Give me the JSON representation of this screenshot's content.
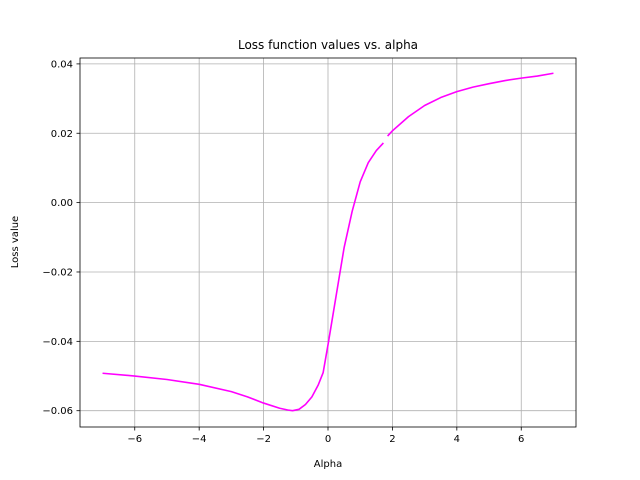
{
  "chart_data": {
    "type": "line",
    "title": "Loss function values vs. alpha",
    "xlabel": "Alpha",
    "ylabel": "Loss value",
    "xlim": [
      -7.7,
      7.7
    ],
    "ylim": [
      -0.0647,
      0.0417
    ],
    "grid": true,
    "x_ticks": [
      -6,
      -4,
      -2,
      0,
      2,
      4,
      6
    ],
    "x_tick_labels": [
      "−6",
      "−4",
      "−2",
      "0",
      "2",
      "4",
      "6"
    ],
    "y_ticks": [
      -0.06,
      -0.04,
      -0.02,
      0.0,
      0.02,
      0.04
    ],
    "y_tick_labels": [
      "−0.06",
      "−0.04",
      "−0.02",
      "0.00",
      "0.02",
      "0.04"
    ],
    "series": [
      {
        "color": "#ff00ff",
        "segments": [
          {
            "x": [
              -7.0,
              -6.0,
              -5.0,
              -4.0,
              -3.0,
              -2.5,
              -2.0,
              -1.5,
              -1.25,
              -1.1,
              -0.9,
              -0.7,
              -0.5,
              -0.3,
              -0.15,
              0.0,
              0.25,
              0.5,
              0.75,
              1.0,
              1.25,
              1.5,
              1.72
            ],
            "y": [
              -0.0492,
              -0.05,
              -0.051,
              -0.0524,
              -0.0545,
              -0.056,
              -0.0578,
              -0.0593,
              -0.0598,
              -0.06,
              -0.0596,
              -0.0582,
              -0.056,
              -0.0525,
              -0.049,
              -0.041,
              -0.027,
              -0.013,
              -0.0025,
              0.006,
              0.0115,
              0.015,
              0.0172
            ]
          },
          {
            "x": [
              1.85,
              2.0,
              2.5,
              3.0,
              3.5,
              4.0,
              4.5,
              5.0,
              5.5,
              6.0,
              6.5,
              7.0
            ],
            "y": [
              0.0192,
              0.0207,
              0.0248,
              0.028,
              0.0303,
              0.032,
              0.0333,
              0.0343,
              0.0352,
              0.0359,
              0.0365,
              0.0373
            ]
          }
        ]
      }
    ]
  }
}
